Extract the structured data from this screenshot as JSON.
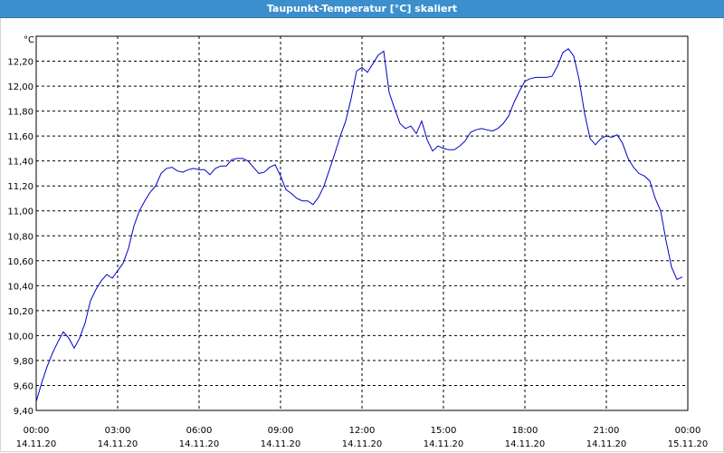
{
  "window": {
    "title": "Taupunkt-Temperatur [°C] skaliert"
  },
  "colors": {
    "titlebar": "#3b8fcc",
    "series": "#0000c8",
    "grid": "#000000"
  },
  "chart_data": {
    "type": "line",
    "title": "Taupunkt-Temperatur [°C] skaliert",
    "ylabel": "°C",
    "xlabel": "",
    "ylim": [
      9.4,
      12.4
    ],
    "grid": true,
    "y_ticks": [
      "9,40",
      "9,60",
      "9,80",
      "10,00",
      "10,20",
      "10,40",
      "10,60",
      "10,80",
      "11,00",
      "11,20",
      "11,40",
      "11,60",
      "11,80",
      "12,00",
      "12,20"
    ],
    "x_ticks": [
      {
        "time": "00:00",
        "date": "14.11.20"
      },
      {
        "time": "03:00",
        "date": "14.11.20"
      },
      {
        "time": "06:00",
        "date": "14.11.20"
      },
      {
        "time": "09:00",
        "date": "14.11.20"
      },
      {
        "time": "12:00",
        "date": "14.11.20"
      },
      {
        "time": "15:00",
        "date": "14.11.20"
      },
      {
        "time": "18:00",
        "date": "14.11.20"
      },
      {
        "time": "21:00",
        "date": "14.11.20"
      },
      {
        "time": "00:00",
        "date": "15.11.20"
      }
    ],
    "x_hours": [
      0,
      0.2,
      0.4,
      0.6,
      0.8,
      1.0,
      1.2,
      1.4,
      1.6,
      1.8,
      2.0,
      2.2,
      2.4,
      2.6,
      2.8,
      3.0,
      3.2,
      3.4,
      3.6,
      3.8,
      4.0,
      4.2,
      4.4,
      4.6,
      4.8,
      5.0,
      5.2,
      5.4,
      5.6,
      5.8,
      6.0,
      6.2,
      6.4,
      6.6,
      6.8,
      7.0,
      7.2,
      7.4,
      7.6,
      7.8,
      8.0,
      8.2,
      8.4,
      8.6,
      8.8,
      9.0,
      9.2,
      9.4,
      9.6,
      9.8,
      10.0,
      10.2,
      10.4,
      10.6,
      10.8,
      11.0,
      11.2,
      11.4,
      11.6,
      11.8,
      12.0,
      12.2,
      12.4,
      12.6,
      12.8,
      13.0,
      13.2,
      13.4,
      13.6,
      13.8,
      14.0,
      14.2,
      14.4,
      14.6,
      14.8,
      15.0,
      15.2,
      15.4,
      15.6,
      15.8,
      16.0,
      16.2,
      16.4,
      16.6,
      16.8,
      17.0,
      17.2,
      17.4,
      17.6,
      17.8,
      18.0,
      18.2,
      18.4,
      18.6,
      18.8,
      19.0,
      19.2,
      19.4,
      19.6,
      19.8,
      20.0,
      20.2,
      20.4,
      20.6,
      20.8,
      21.0,
      21.2,
      21.4,
      21.6,
      21.8,
      22.0,
      22.2,
      22.4,
      22.6,
      22.8,
      23.0,
      23.2,
      23.4,
      23.6,
      23.8
    ],
    "values": [
      9.47,
      9.62,
      9.75,
      9.86,
      9.95,
      10.03,
      9.98,
      9.9,
      9.98,
      10.1,
      10.28,
      10.37,
      10.44,
      10.49,
      10.46,
      10.52,
      10.58,
      10.7,
      10.88,
      11.0,
      11.08,
      11.15,
      11.2,
      11.3,
      11.34,
      11.35,
      11.32,
      11.31,
      11.33,
      11.34,
      11.33,
      11.33,
      11.29,
      11.34,
      11.36,
      11.36,
      11.41,
      11.42,
      11.42,
      11.4,
      11.35,
      11.3,
      11.31,
      11.35,
      11.37,
      11.28,
      11.17,
      11.14,
      11.1,
      11.08,
      11.08,
      11.05,
      11.11,
      11.2,
      11.33,
      11.46,
      11.6,
      11.72,
      11.9,
      12.12,
      12.15,
      12.11,
      12.18,
      12.25,
      12.28,
      11.95,
      11.82,
      11.7,
      11.66,
      11.68,
      11.62,
      11.72,
      11.57,
      11.48,
      11.52,
      11.5,
      11.49,
      11.49,
      11.52,
      11.56,
      11.63,
      11.65,
      11.66,
      11.65,
      11.64,
      11.66,
      11.7,
      11.76,
      11.87,
      11.96,
      12.04,
      12.06,
      12.07,
      12.07,
      12.07,
      12.08,
      12.16,
      12.27,
      12.3,
      12.24,
      12.05,
      11.78,
      11.58,
      11.53,
      11.58,
      11.6,
      11.59,
      11.61,
      11.54,
      11.42,
      11.35,
      11.3,
      11.28,
      11.24,
      11.1,
      11.0,
      10.76,
      10.55,
      10.45,
      10.47
    ]
  }
}
